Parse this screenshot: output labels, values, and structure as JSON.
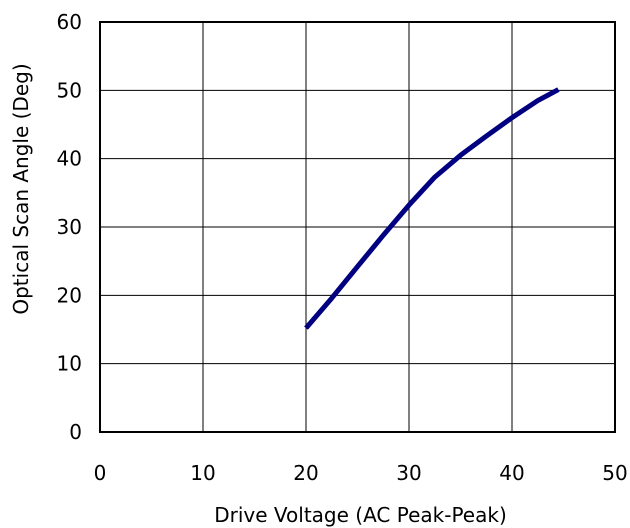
{
  "chart_data": {
    "type": "line",
    "title": "",
    "xlabel": "Drive Voltage (AC Peak-Peak)",
    "ylabel": "Optical Scan Angle (Deg)",
    "xlim": [
      0,
      50
    ],
    "ylim": [
      0,
      60
    ],
    "xticks": [
      "0",
      "10",
      "20",
      "30",
      "40",
      "50"
    ],
    "yticks": [
      "0",
      "10",
      "20",
      "30",
      "40",
      "50",
      "60"
    ],
    "grid": true,
    "legend": "none",
    "series": [
      {
        "color": "#000080",
        "x": [
          20,
          22.5,
          25,
          27.5,
          30,
          32.5,
          35,
          37.5,
          40,
          42.5,
          44.5
        ],
        "y": [
          15.2,
          19.6,
          24.2,
          28.8,
          33.2,
          37.3,
          40.5,
          43.3,
          46.0,
          48.5,
          50.1
        ]
      }
    ]
  }
}
